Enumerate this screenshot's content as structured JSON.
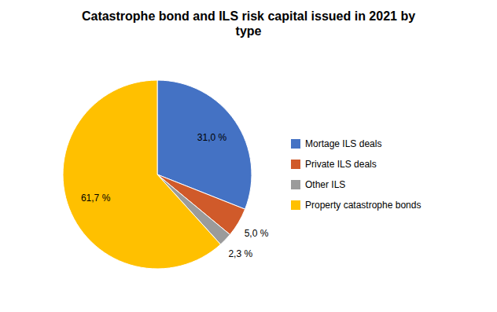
{
  "chart_data": {
    "type": "pie",
    "title": "Catastrophe bond and ILS risk capital issued in 2021 by\ntype",
    "categories": [
      "Mortage ILS deals",
      "Private ILS deals",
      "Other ILS",
      "Property catastrophe bonds"
    ],
    "values": [
      31.0,
      5.0,
      2.3,
      61.7
    ],
    "value_labels": [
      "31,0 %",
      "5,0 %",
      "2,3 %",
      "61,7 %"
    ],
    "colors": [
      "#4472C4",
      "#D05A2A",
      "#9B9B9B",
      "#FFC000"
    ],
    "data_labels": true,
    "legend": "right"
  }
}
